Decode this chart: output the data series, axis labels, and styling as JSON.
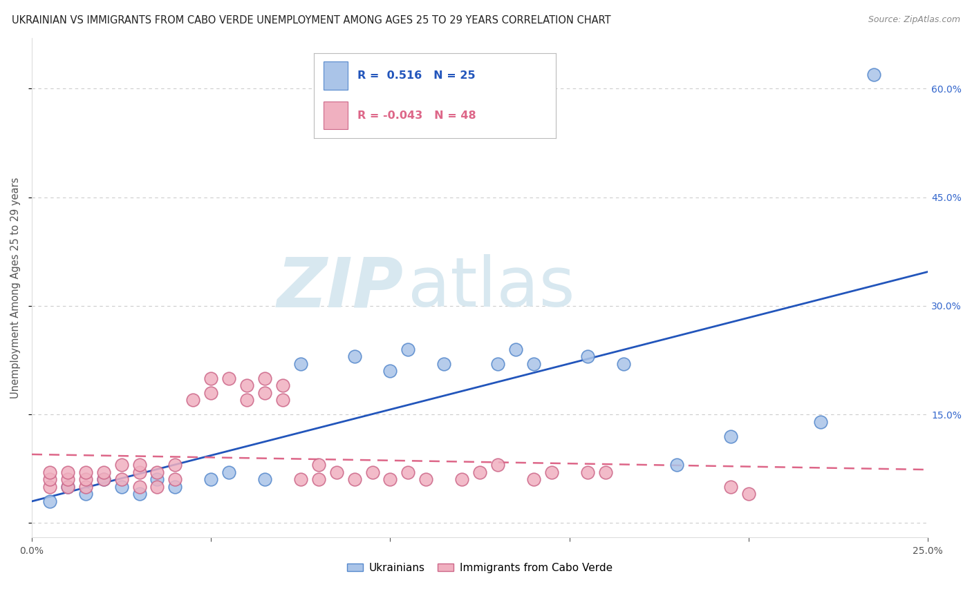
{
  "title": "UKRAINIAN VS IMMIGRANTS FROM CABO VERDE UNEMPLOYMENT AMONG AGES 25 TO 29 YEARS CORRELATION CHART",
  "source": "Source: ZipAtlas.com",
  "ylabel": "Unemployment Among Ages 25 to 29 years",
  "xlim": [
    0.0,
    0.25
  ],
  "ylim": [
    -0.02,
    0.67
  ],
  "yticks": [
    0.0,
    0.15,
    0.3,
    0.45,
    0.6
  ],
  "xticks": [
    0.0,
    0.05,
    0.1,
    0.15,
    0.2,
    0.25
  ],
  "legend_text_ukr": "R =  0.516   N = 25",
  "legend_text_cabo": "R = -0.043   N = 48",
  "ukrainian_fill": "#aac4e8",
  "ukrainian_edge": "#5588cc",
  "cabo_fill": "#f0b0c0",
  "cabo_edge": "#cc6688",
  "ukr_line_color": "#2255bb",
  "cabo_line_color": "#dd6688",
  "right_axis_color": "#3366cc",
  "watermark_color": "#d8e8f0",
  "ukr_x": [
    0.005,
    0.01,
    0.015,
    0.02,
    0.025,
    0.03,
    0.035,
    0.04,
    0.05,
    0.055,
    0.065,
    0.075,
    0.09,
    0.1,
    0.105,
    0.115,
    0.13,
    0.135,
    0.14,
    0.155,
    0.165,
    0.18,
    0.195,
    0.22,
    0.235
  ],
  "ukr_y": [
    0.03,
    0.05,
    0.04,
    0.06,
    0.05,
    0.04,
    0.06,
    0.05,
    0.06,
    0.07,
    0.06,
    0.22,
    0.23,
    0.21,
    0.24,
    0.22,
    0.22,
    0.24,
    0.22,
    0.23,
    0.22,
    0.08,
    0.12,
    0.14,
    0.62
  ],
  "cabo_x": [
    0.005,
    0.005,
    0.005,
    0.01,
    0.01,
    0.01,
    0.015,
    0.015,
    0.015,
    0.02,
    0.02,
    0.025,
    0.025,
    0.03,
    0.03,
    0.03,
    0.035,
    0.035,
    0.04,
    0.04,
    0.045,
    0.05,
    0.05,
    0.055,
    0.06,
    0.06,
    0.065,
    0.065,
    0.07,
    0.07,
    0.075,
    0.08,
    0.08,
    0.085,
    0.09,
    0.095,
    0.1,
    0.105,
    0.11,
    0.12,
    0.125,
    0.13,
    0.14,
    0.145,
    0.155,
    0.16,
    0.195,
    0.2
  ],
  "cabo_y": [
    0.05,
    0.06,
    0.07,
    0.05,
    0.06,
    0.07,
    0.05,
    0.06,
    0.07,
    0.06,
    0.07,
    0.06,
    0.08,
    0.05,
    0.07,
    0.08,
    0.05,
    0.07,
    0.06,
    0.08,
    0.17,
    0.18,
    0.2,
    0.2,
    0.17,
    0.19,
    0.18,
    0.2,
    0.17,
    0.19,
    0.06,
    0.06,
    0.08,
    0.07,
    0.06,
    0.07,
    0.06,
    0.07,
    0.06,
    0.06,
    0.07,
    0.08,
    0.06,
    0.07,
    0.07,
    0.07,
    0.05,
    0.04
  ]
}
